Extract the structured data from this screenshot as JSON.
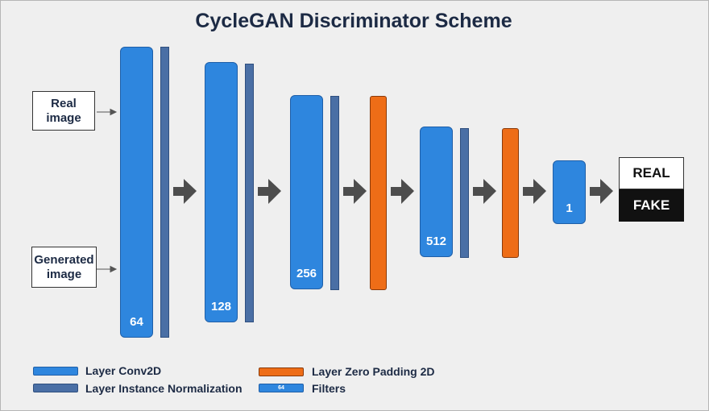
{
  "title": "CycleGAN Discriminator Scheme",
  "inputs": {
    "real_line1": "Real",
    "real_line2": "image",
    "generated_line1": "Generated",
    "generated_line2": "image"
  },
  "filters": {
    "block1": "64",
    "block2": "128",
    "block3": "256",
    "block4": "512",
    "block5": "1"
  },
  "outputs": {
    "real": "REAL",
    "fake": "FAKE"
  },
  "legend": {
    "conv2d": "Layer Conv2D",
    "instance_norm": "Layer Instance Normalization",
    "zero_padding": "Layer Zero Padding 2D",
    "filters": "Filters",
    "filters_example": "64"
  },
  "colors": {
    "conv2d": "#2e86de",
    "instance_norm": "#4a6fa5",
    "zero_padding": "#ee6d17",
    "arrow": "#4d4d4d"
  }
}
